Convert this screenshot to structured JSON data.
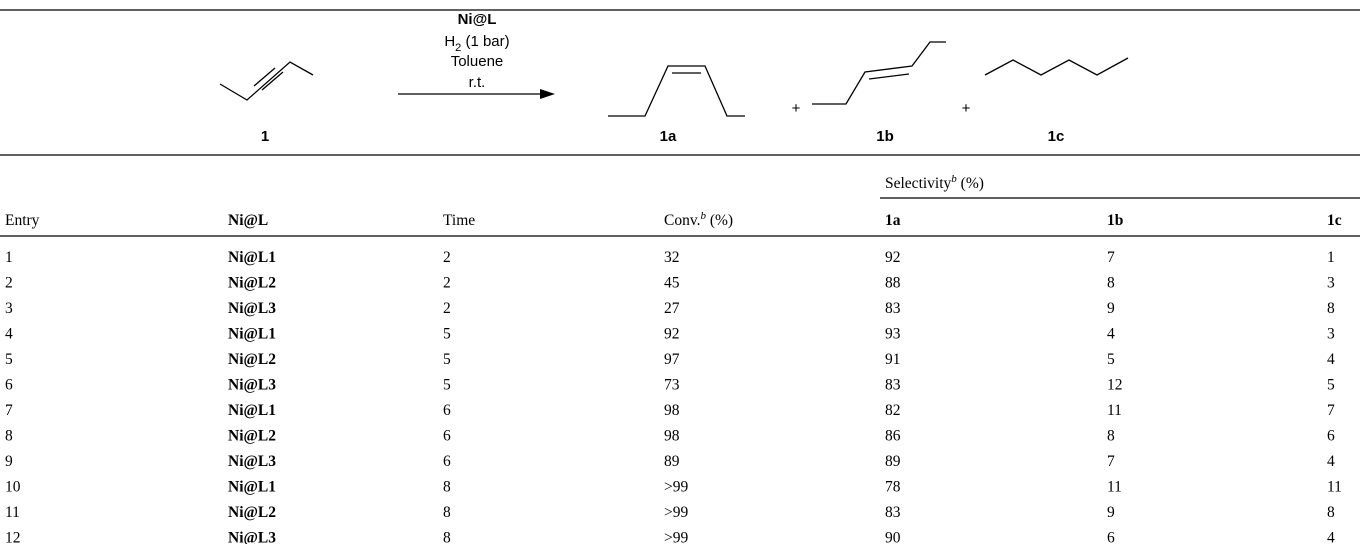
{
  "scheme": {
    "catalyst": "Ni@L",
    "gas": {
      "text": "H",
      "sub": "2",
      "rest": " (1 bar)"
    },
    "solvent": "Toluene",
    "temperature": "r.t.",
    "reactant": "1",
    "products": [
      "1a",
      "1b",
      "1c"
    ]
  },
  "table": {
    "headers": {
      "entry": "Entry",
      "catalyst": "Ni@L",
      "time": "Time",
      "conversion": {
        "text": "Conv.",
        "sup": "b",
        "unit": " (%)"
      },
      "selectivity": {
        "text": "Selectivity",
        "sup": "b",
        "unit": " (%)"
      },
      "products": [
        "1a",
        "1b",
        "1c"
      ]
    },
    "rows": [
      [
        1,
        "Ni@L1",
        2,
        32,
        92,
        7,
        1
      ],
      [
        2,
        "Ni@L2",
        2,
        45,
        88,
        8,
        3
      ],
      [
        3,
        "Ni@L3",
        2,
        27,
        83,
        9,
        8
      ],
      [
        4,
        "Ni@L1",
        5,
        92,
        93,
        4,
        3
      ],
      [
        5,
        "Ni@L2",
        5,
        97,
        91,
        5,
        4
      ],
      [
        6,
        "Ni@L3",
        5,
        73,
        83,
        12,
        5
      ],
      [
        7,
        "Ni@L1",
        6,
        98,
        82,
        11,
        7
      ],
      [
        8,
        "Ni@L2",
        6,
        98,
        86,
        8,
        6
      ],
      [
        9,
        "Ni@L3",
        6,
        89,
        89,
        7,
        4
      ],
      [
        10,
        "Ni@L1",
        8,
        ">99",
        78,
        11,
        11
      ],
      [
        11,
        "Ni@L2",
        8,
        ">99",
        83,
        9,
        8
      ],
      [
        12,
        "Ni@L3",
        8,
        ">99",
        90,
        6,
        4
      ]
    ]
  }
}
